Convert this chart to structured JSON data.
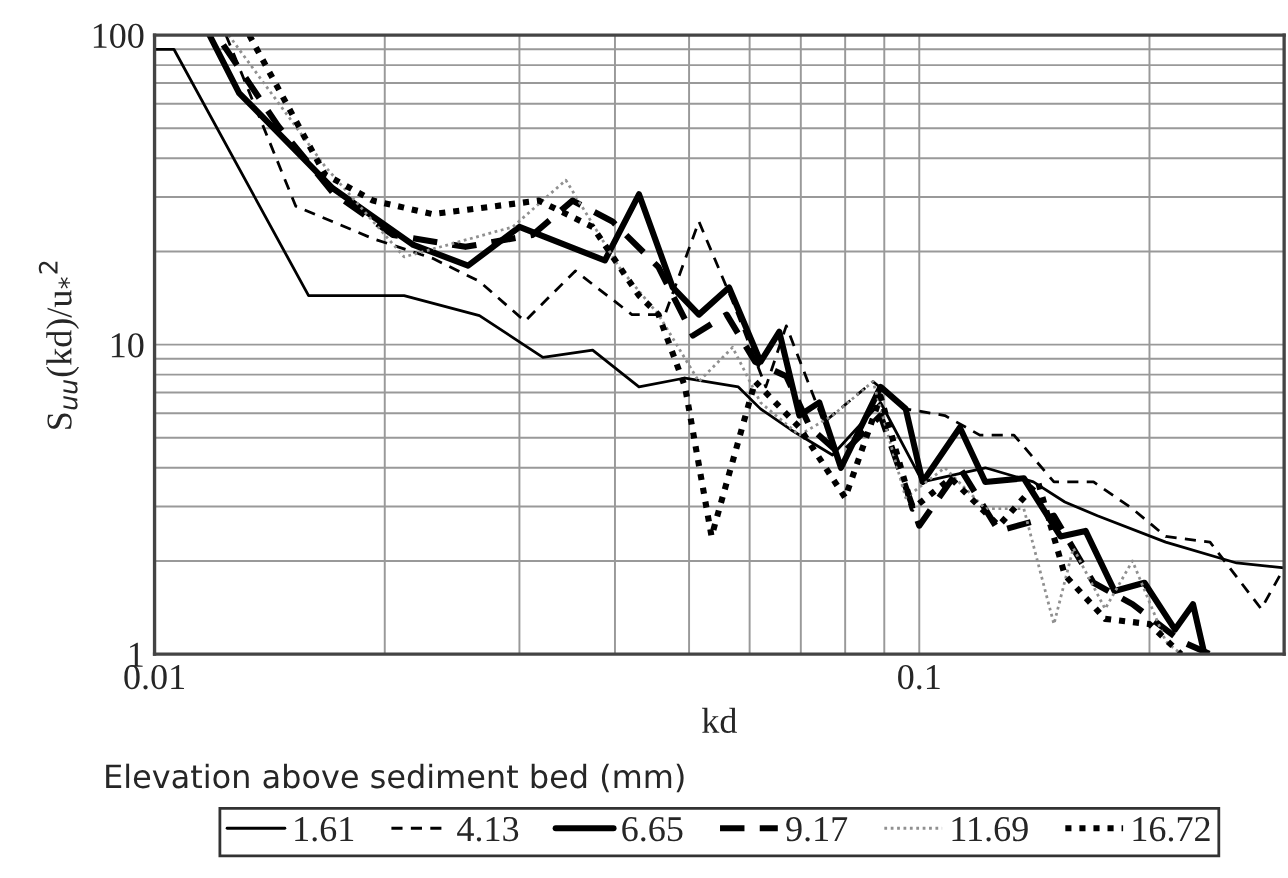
{
  "chart_data": {
    "type": "line",
    "xlabel": "kd",
    "ylabel": "S$_{uu}$(kd)/u$_{*}$$^{2}$",
    "legend_title": "Elevation above sediment bed (mm)",
    "legend": "bottom",
    "log": "xy",
    "grid": true,
    "xlim": [
      0.01,
      0.3
    ],
    "ylim": [
      1,
      100
    ],
    "xticks": [
      0.01,
      0.1
    ],
    "yticks": [
      1,
      10,
      100
    ],
    "series": [
      {
        "name": "1.61",
        "color": "#000000",
        "line_style": "solid",
        "x": [
          0.01,
          0.0106,
          0.0159,
          0.0212,
          0.0266,
          0.0322,
          0.0374,
          0.043,
          0.0494,
          0.058,
          0.062,
          0.068,
          0.077,
          0.089,
          0.101,
          0.122,
          0.141,
          0.155,
          0.171,
          0.21,
          0.26,
          0.3
        ],
        "values": [
          90,
          90,
          14.4,
          14.4,
          12.4,
          9.1,
          9.6,
          7.3,
          7.8,
          7.3,
          6.2,
          5.3,
          4.4,
          6.5,
          3.6,
          4.0,
          3.6,
          3.1,
          2.8,
          2.3,
          1.97,
          1.9
        ]
      },
      {
        "name": "4.13",
        "color": "#000000",
        "line_style": "dashed",
        "x": [
          0.0124,
          0.0153,
          0.0193,
          0.0231,
          0.0266,
          0.0305,
          0.0355,
          0.0421,
          0.0465,
          0.0515,
          0.057,
          0.063,
          0.067,
          0.075,
          0.087,
          0.096,
          0.108,
          0.12,
          0.133,
          0.15,
          0.169,
          0.19,
          0.21,
          0.24,
          0.28,
          0.3
        ],
        "values": [
          100,
          28,
          22,
          19,
          16,
          11.9,
          17.3,
          12.5,
          12.5,
          25,
          13.8,
          7.3,
          11.5,
          5.6,
          7.6,
          6.2,
          5.9,
          5.1,
          5.1,
          3.6,
          3.6,
          2.95,
          2.4,
          2.3,
          1.4,
          1.9
        ]
      },
      {
        "name": "6.65",
        "color": "#000000",
        "line_style": "solid",
        "x": [
          0.0118,
          0.0129,
          0.0171,
          0.0218,
          0.0257,
          0.03,
          0.0388,
          0.043,
          0.0476,
          0.0515,
          0.0564,
          0.062,
          0.0656,
          0.0697,
          0.074,
          0.079,
          0.089,
          0.096,
          0.101,
          0.113,
          0.122,
          0.137,
          0.153,
          0.165,
          0.18,
          0.197,
          0.216,
          0.228,
          0.236
        ],
        "values": [
          100,
          65,
          32,
          21,
          18,
          24,
          18.7,
          30.6,
          15.3,
          12.5,
          15.3,
          8.8,
          11,
          5.9,
          6.5,
          4.0,
          7.3,
          6.2,
          3.6,
          5.4,
          3.6,
          3.7,
          2.4,
          2.5,
          1.6,
          1.7,
          1.2,
          1.45,
          1.0
        ]
      },
      {
        "name": "9.17",
        "color": "#000000",
        "line_style": "dashed",
        "x": [
          0.0123,
          0.0145,
          0.0171,
          0.0205,
          0.0255,
          0.0312,
          0.0352,
          0.0397,
          0.0456,
          0.0506,
          0.056,
          0.061,
          0.067,
          0.072,
          0.079,
          0.089,
          0.1,
          0.113,
          0.127,
          0.15,
          0.169,
          0.19,
          0.22,
          0.24
        ],
        "values": [
          93,
          51,
          31,
          22.6,
          20.7,
          22.6,
          29.2,
          25,
          17.8,
          10.7,
          12.5,
          8.8,
          7.9,
          5.4,
          4.4,
          5.9,
          2.6,
          4.0,
          2.5,
          2.8,
          1.7,
          1.45,
          1.1,
          1.0
        ]
      },
      {
        "name": "11.69",
        "color": "#909090",
        "line_style": "dotted",
        "x": [
          0.0125,
          0.0167,
          0.0212,
          0.0294,
          0.0345,
          0.0405,
          0.0456,
          0.0515,
          0.057,
          0.062,
          0.0697,
          0.077,
          0.087,
          0.096,
          0.108,
          0.122,
          0.137,
          0.15,
          0.159,
          0.175,
          0.19,
          0.21,
          0.22
        ],
        "values": [
          100,
          37.7,
          19.2,
          24,
          34,
          17.8,
          12.5,
          7.6,
          9.8,
          6.5,
          5.1,
          5.9,
          7.6,
          3.2,
          4.0,
          2.95,
          2.95,
          1.25,
          2.2,
          1.4,
          2.0,
          1.1,
          1.0
        ]
      },
      {
        "name": "16.72",
        "color": "#000000",
        "line_style": "dotted",
        "x": [
          0.0133,
          0.0167,
          0.0193,
          0.0231,
          0.0318,
          0.0374,
          0.043,
          0.0456,
          0.0494,
          0.0535,
          0.061,
          0.0697,
          0.08,
          0.089,
          0.098,
          0.11,
          0.127,
          0.143,
          0.155,
          0.175,
          0.2,
          0.22
        ],
        "values": [
          100,
          35.5,
          29.2,
          26.4,
          29.2,
          24,
          14.4,
          12.5,
          7.3,
          2.4,
          7.6,
          5.4,
          3.2,
          6.8,
          2.95,
          3.7,
          2.6,
          3.6,
          1.8,
          1.3,
          1.25,
          1.0
        ]
      }
    ]
  }
}
